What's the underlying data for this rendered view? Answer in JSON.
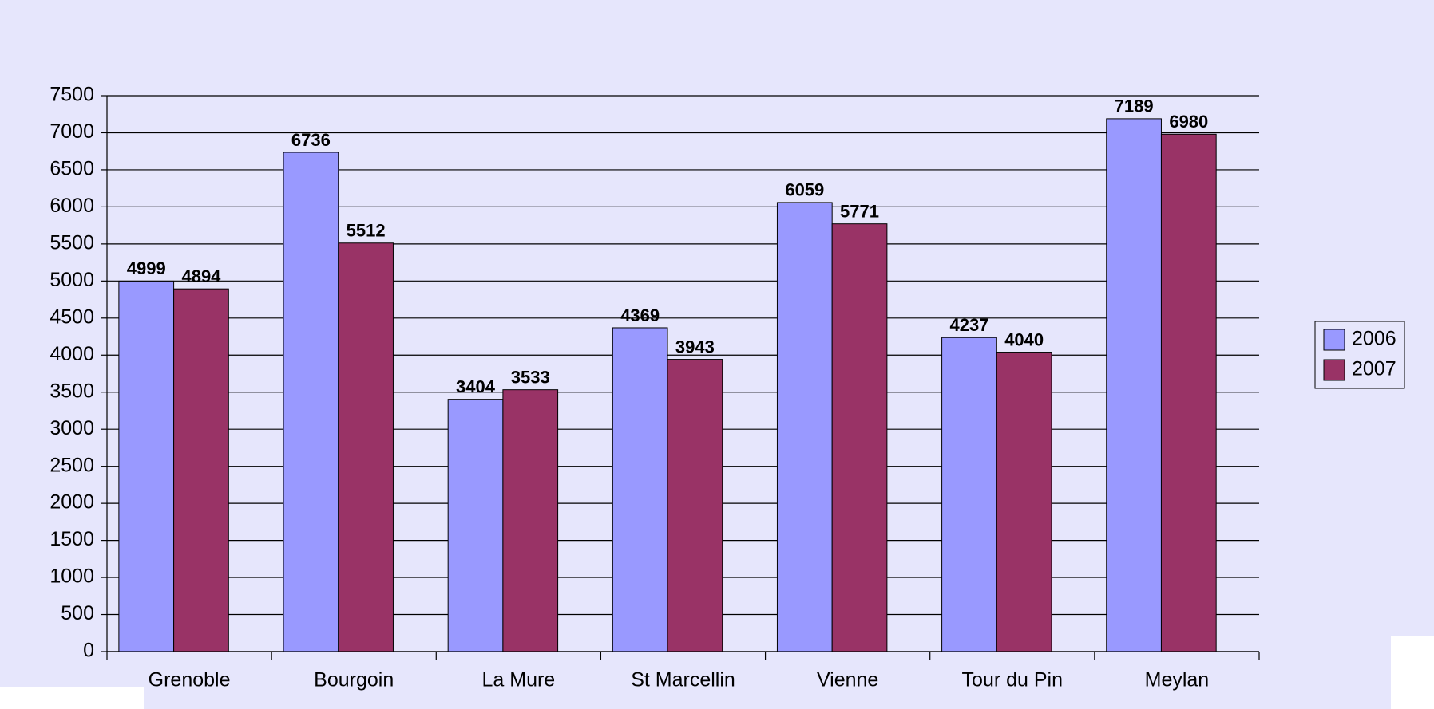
{
  "chart_data": {
    "type": "bar",
    "categories": [
      "Grenoble",
      "Bourgoin",
      "La Mure",
      "St Marcellin",
      "Vienne",
      "Tour du Pin",
      "Meylan"
    ],
    "series": [
      {
        "name": "2006",
        "color": "#9999ff",
        "values": [
          4999,
          6736,
          3404,
          4369,
          6059,
          4237,
          7189
        ]
      },
      {
        "name": "2007",
        "color": "#993366",
        "values": [
          4894,
          5512,
          3533,
          3943,
          5771,
          4040,
          6980
        ]
      }
    ],
    "ylim": [
      0,
      7500
    ],
    "yticks": [
      0,
      500,
      1000,
      1500,
      2000,
      2500,
      3000,
      3500,
      4000,
      4500,
      5000,
      5500,
      6000,
      6500,
      7000,
      7500
    ],
    "grid": true,
    "legend": "right"
  }
}
